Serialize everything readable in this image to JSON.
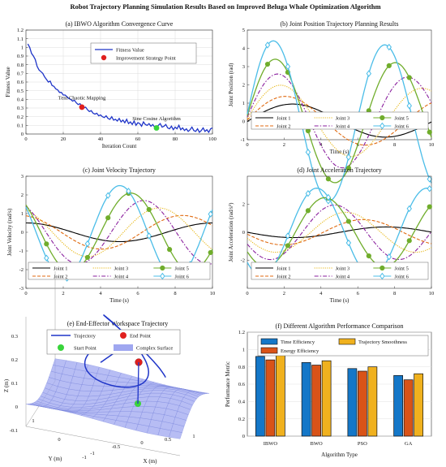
{
  "figure_title": "Robot Trajectory Planning Simulation Results Based on Improved Beluga Whale Optimization Algorithm",
  "colors": {
    "fitness": "#1f35c8",
    "red": "#e0201e",
    "green": "#39d43b",
    "joint1": "#000000",
    "joint2": "#e06a10",
    "joint3": "#e8b817",
    "joint4": "#8a1f9e",
    "joint5": "#70ad2c",
    "joint6": "#4bbde8",
    "surface": "#9fa7f0",
    "bar_time": "#1477c8",
    "bar_energy": "#d95318",
    "bar_smooth": "#f0b11e"
  },
  "chart_data": [
    {
      "id": "a",
      "type": "line",
      "title": "(a) IBWO Algorithm Convergence Curve",
      "xlabel": "Iteration Count",
      "ylabel": "Fitness Value",
      "xlim": [
        0,
        100
      ],
      "ylim": [
        0,
        1.2
      ],
      "xticks": [
        "0",
        "20",
        "40",
        "60",
        "80",
        "100"
      ],
      "yticks": [
        "0",
        "0.1",
        "0.2",
        "0.3",
        "0.4",
        "0.5",
        "0.6",
        "0.7",
        "0.8",
        "0.9",
        "1",
        "1.1",
        "1.2"
      ],
      "grid": true,
      "legend": {
        "placement": "top-right",
        "entries": [
          "Fitness Value",
          "Improvement Strategy Point"
        ]
      },
      "series": [
        {
          "name": "Fitness Value",
          "x": [
            1,
            2,
            3,
            4,
            5,
            6,
            7,
            8,
            9,
            10,
            11,
            12,
            13,
            14,
            15,
            16,
            17,
            18,
            19,
            20,
            21,
            22,
            23,
            24,
            25,
            26,
            27,
            28,
            29,
            30,
            31,
            32,
            33,
            34,
            35,
            36,
            37,
            38,
            39,
            40,
            41,
            42,
            43,
            44,
            45,
            46,
            47,
            48,
            49,
            50,
            51,
            52,
            53,
            54,
            55,
            56,
            57,
            58,
            59,
            60,
            61,
            62,
            63,
            64,
            65,
            66,
            67,
            68,
            69,
            70,
            71,
            72,
            73,
            74,
            75,
            76,
            77,
            78,
            79,
            80,
            81,
            82,
            83,
            84,
            85,
            86,
            87,
            88,
            89,
            90,
            91,
            92,
            93,
            94,
            95,
            96,
            97,
            98,
            99,
            100
          ],
          "y": [
            1.04,
            1.0,
            0.93,
            0.9,
            0.86,
            0.78,
            0.74,
            0.72,
            0.7,
            0.66,
            0.63,
            0.6,
            0.61,
            0.56,
            0.55,
            0.52,
            0.51,
            0.48,
            0.48,
            0.45,
            0.45,
            0.43,
            0.41,
            0.4,
            0.38,
            0.39,
            0.36,
            0.34,
            0.35,
            0.32,
            0.3,
            0.31,
            0.28,
            0.26,
            0.27,
            0.24,
            0.23,
            0.24,
            0.21,
            0.22,
            0.2,
            0.19,
            0.21,
            0.18,
            0.17,
            0.2,
            0.16,
            0.17,
            0.15,
            0.18,
            0.14,
            0.16,
            0.13,
            0.17,
            0.12,
            0.14,
            0.11,
            0.15,
            0.1,
            0.13,
            0.12,
            0.09,
            0.14,
            0.11,
            0.1,
            0.12,
            0.09,
            0.11,
            0.08,
            0.07,
            0.1,
            0.12,
            0.08,
            0.09,
            0.11,
            0.07,
            0.06,
            0.09,
            0.05,
            0.08,
            0.06,
            0.1,
            0.05,
            0.07,
            0.04,
            0.06,
            0.03,
            0.05,
            0.08,
            0.04,
            0.03,
            0.06,
            0.02,
            0.04,
            0.07,
            0.03,
            0.05,
            0.02,
            0.06,
            0.07
          ]
        }
      ],
      "points": [
        {
          "x": 30,
          "y": 0.31,
          "color": "red"
        },
        {
          "x": 70,
          "y": 0.07,
          "color": "green"
        }
      ],
      "annotations": [
        {
          "text": "Tent Chaotic Mapping",
          "x": 30,
          "y": 0.4
        },
        {
          "text": "Sine Cosine Algorithm",
          "x": 70,
          "y": 0.16
        }
      ]
    },
    {
      "id": "b",
      "type": "line",
      "title": "(b) Joint Position Trajectory Planning Results",
      "xlabel": "Time (s)",
      "ylabel": "Joint Position (rad)",
      "xlim": [
        0,
        10
      ],
      "ylim": [
        -1,
        5
      ],
      "xticks": [
        "0",
        "2",
        "4",
        "6",
        "8",
        "10"
      ],
      "yticks": [
        "-1",
        "0",
        "1",
        "2",
        "3",
        "4",
        "5"
      ],
      "legend": {
        "placement": "bottom",
        "entries": [
          "Joint 1",
          "Joint 2",
          "Joint 3",
          "Joint 4",
          "Joint 5",
          "Joint 6"
        ]
      }
    },
    {
      "id": "c",
      "type": "line",
      "title": "(c) Joint Velocity Trajectory",
      "xlabel": "Time (s)",
      "ylabel": "Joint Velocity (rad/s)",
      "xlim": [
        0,
        10
      ],
      "ylim": [
        -3,
        3
      ],
      "xticks": [
        "0",
        "2",
        "4",
        "6",
        "8",
        "10"
      ],
      "yticks": [
        "-3",
        "-2",
        "-1",
        "0",
        "1",
        "2",
        "3"
      ],
      "legend": {
        "placement": "bottom",
        "entries": [
          "Joint 1",
          "Joint 2",
          "Joint 3",
          "Joint 4",
          "Joint 5",
          "Joint 6"
        ]
      }
    },
    {
      "id": "d",
      "type": "line",
      "title": "(d) Joint Acceleration Trajectory",
      "xlabel": "Time (s)",
      "ylabel": "Joint Acceleration (rad/s²)",
      "xlim": [
        0,
        10
      ],
      "ylim": [
        -4,
        4
      ],
      "xticks": [
        "0",
        "2",
        "4",
        "6",
        "8",
        "10"
      ],
      "yticks": [
        "-2",
        "0",
        "2"
      ],
      "legend": {
        "placement": "bottom",
        "entries": [
          "Joint 1",
          "Joint 2",
          "Joint 3",
          "Joint 4",
          "Joint 5",
          "Joint 6"
        ]
      }
    },
    {
      "id": "e",
      "type": "scatter",
      "title": "(e) End-Effector Workspace Trajectory",
      "xlabel": "X (m)",
      "ylabel": "Y (m)",
      "zlabel": "Z (m)",
      "xticks": [
        "-1",
        "-0.5",
        "0",
        "0.5",
        "1"
      ],
      "yticks": [
        "-1",
        "0",
        "1"
      ],
      "zticks": [
        "-0.1",
        "0",
        "0.1",
        "0.2",
        "0.3"
      ],
      "legend": {
        "placement": "top",
        "entries": [
          "Trajectory",
          "End Point",
          "Start Point",
          "Complex Surface"
        ]
      }
    },
    {
      "id": "f",
      "type": "bar",
      "title": "(f) Different Algorithm Performance Comparison",
      "xlabel": "Algorithm Type",
      "ylabel": "Performance Metric",
      "ylim": [
        0,
        1.2
      ],
      "yticks": [
        "0",
        "0.2",
        "0.4",
        "0.6",
        "0.8",
        "1",
        "1.2"
      ],
      "categories": [
        "IBWO",
        "BWO",
        "PSO",
        "GA"
      ],
      "legend": {
        "placement": "top",
        "entries": [
          "Time Efficiency",
          "Energy Efficiency",
          "Trajectory Smoothness"
        ]
      },
      "series": [
        {
          "name": "Time Efficiency",
          "values": [
            0.92,
            0.85,
            0.78,
            0.7
          ]
        },
        {
          "name": "Energy Efficiency",
          "values": [
            0.88,
            0.82,
            0.75,
            0.65
          ]
        },
        {
          "name": "Trajectory Smoothness",
          "values": [
            0.95,
            0.87,
            0.8,
            0.72
          ]
        }
      ]
    }
  ]
}
